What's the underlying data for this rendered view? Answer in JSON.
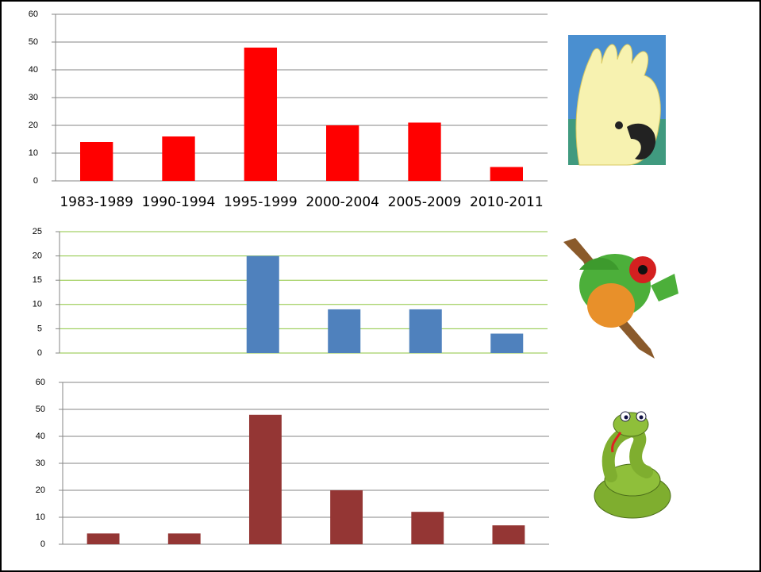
{
  "chart_data": [
    {
      "type": "bar",
      "categories": [
        "1983-1989",
        "1990-1994",
        "1995-1999",
        "2000-2004",
        "2005-2009",
        "2010-2011"
      ],
      "values": [
        14,
        16,
        48,
        20,
        21,
        5
      ],
      "color": "#ff0000",
      "ylim": [
        0,
        60
      ],
      "yticks": [
        0,
        10,
        20,
        30,
        40,
        50,
        60
      ],
      "grid": true,
      "grid_color": "#868686"
    },
    {
      "type": "bar",
      "values": [
        0,
        0,
        20,
        9,
        9,
        4
      ],
      "color": "#4f81bd",
      "ylim": [
        0,
        25
      ],
      "yticks": [
        0,
        5,
        10,
        15,
        20,
        25
      ],
      "grid": true,
      "grid_color": "#8dc63f"
    },
    {
      "type": "bar",
      "values": [
        4,
        4,
        48,
        20,
        12,
        7
      ],
      "color": "#943634",
      "ylim": [
        0,
        60
      ],
      "yticks": [
        0,
        10,
        20,
        30,
        40,
        50,
        60
      ],
      "grid": true,
      "grid_color": "#868686"
    }
  ]
}
